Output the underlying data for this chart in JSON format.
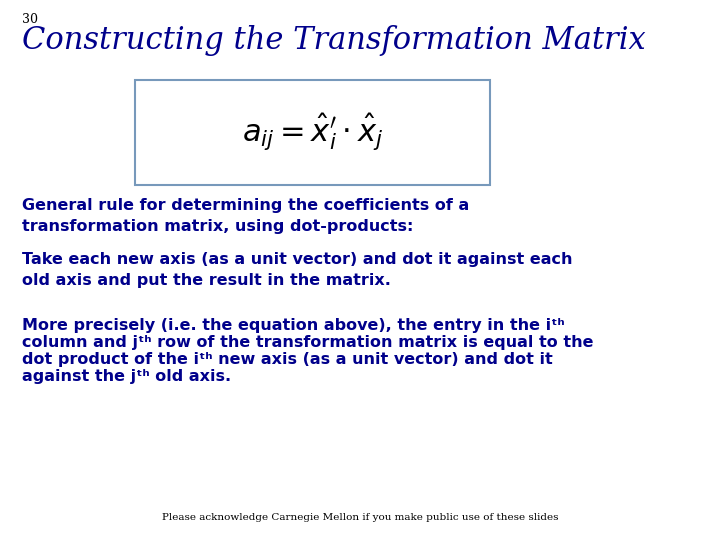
{
  "slide_number": "30",
  "title": "Constructing the Transformation Matrix",
  "title_color": "#00008B",
  "title_fontsize": 22,
  "title_style": "italic",
  "title_font": "serif",
  "slide_number_fontsize": 9,
  "slide_number_color": "#000000",
  "body_color": "#00008B",
  "body_fontsize": 11.5,
  "body_font": "sans-serif",
  "equation_fontsize": 22,
  "equation_color": "#000000",
  "box_edgecolor": "#7799BB",
  "para1_line1": "General rule for determining the coefficients of a",
  "para1_line2": "transformation matrix, using dot-products:",
  "para2_line1": "Take each new axis (as a unit vector) and dot it against each",
  "para2_line2": "old axis and put the result in the matrix.",
  "para3_line1": "More precisely (i.e. the equation above), the entry in the iᵗʰ",
  "para3_line2": "column and jᵗʰ row of the transformation matrix is equal to the",
  "para3_line3": "dot product of the iᵗʰ new axis (as a unit vector) and dot it",
  "para3_line4": "against the jᵗʰ old axis.",
  "footer": "Please acknowledge Carnegie Mellon if you make public use of these slides",
  "footer_fontsize": 7.5,
  "footer_color": "#000000",
  "background_color": "#FFFFFF"
}
